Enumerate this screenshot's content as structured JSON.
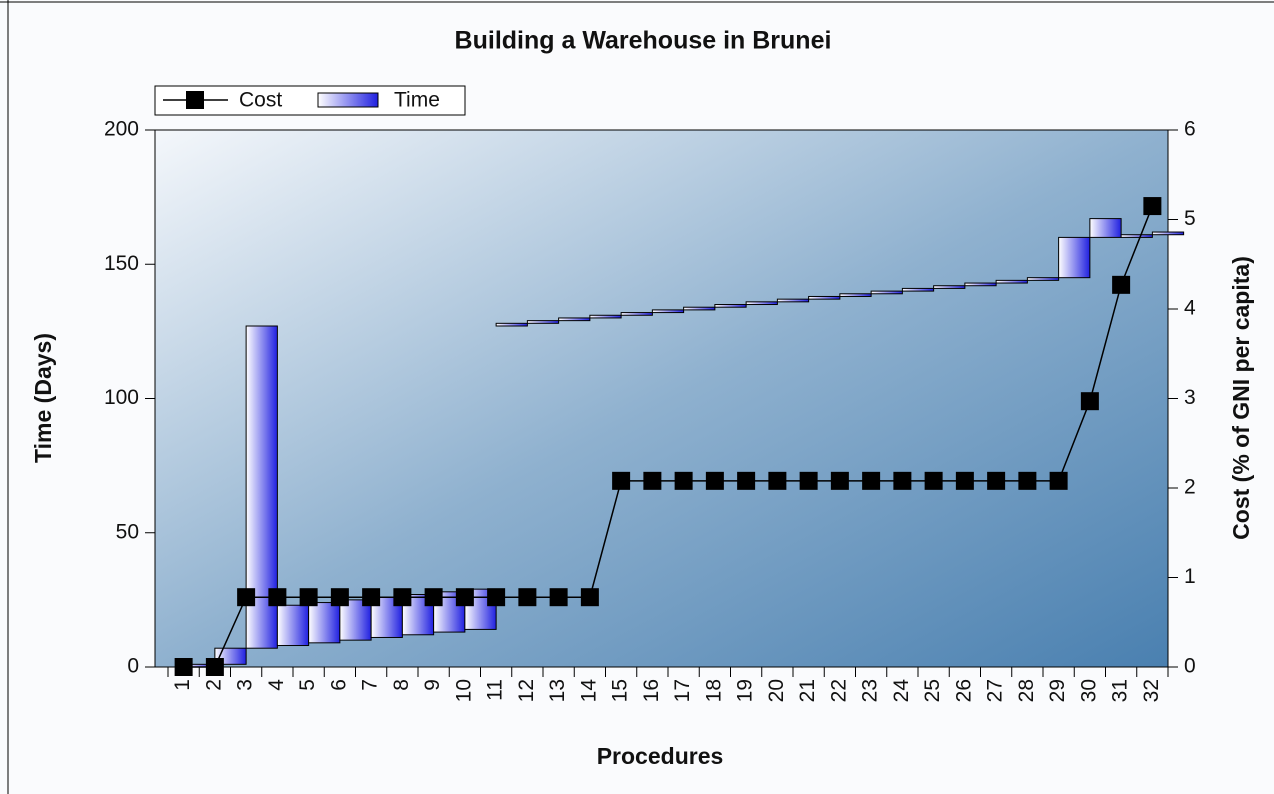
{
  "chart_data": {
    "type": "bar",
    "title": "Building a Warehouse in Brunei",
    "x_label": "Procedures",
    "y_label": "Time (Days)",
    "y2_label": "Cost (% of GNI per capita)",
    "categories": [
      "1",
      "2",
      "3",
      "4",
      "5",
      "6",
      "7",
      "8",
      "9",
      "10",
      "11",
      "12",
      "13",
      "14",
      "15",
      "16",
      "17",
      "18",
      "19",
      "20",
      "21",
      "22",
      "23",
      "24",
      "25",
      "26",
      "27",
      "28",
      "29",
      "30",
      "31",
      "32"
    ],
    "ylim": [
      0,
      200
    ],
    "yticks": [
      0,
      50,
      100,
      150,
      200
    ],
    "y2lim": [
      0,
      6
    ],
    "y2ticks": [
      0,
      1,
      2,
      3,
      4,
      5,
      6
    ],
    "legend": "top-left",
    "series": [
      {
        "name": "Cost",
        "type": "line",
        "axis": "y2",
        "color": "#000000",
        "values": [
          0,
          0,
          0.78,
          0.78,
          0.78,
          0.78,
          0.78,
          0.78,
          0.78,
          0.78,
          0.78,
          0.78,
          0.78,
          0.78,
          2.08,
          2.08,
          2.08,
          2.08,
          2.08,
          2.08,
          2.08,
          2.08,
          2.08,
          2.08,
          2.08,
          2.08,
          2.08,
          2.08,
          2.08,
          2.97,
          4.27,
          5.15
        ]
      },
      {
        "name": "Time",
        "type": "bar",
        "color": "#2020e0",
        "start": [
          0,
          1,
          7,
          8,
          9,
          10,
          11,
          12,
          13,
          14,
          127,
          128,
          129,
          130,
          131,
          132,
          133,
          134,
          135,
          136,
          137,
          138,
          139,
          140,
          141,
          142,
          143,
          144,
          145,
          160,
          160,
          161
        ],
        "values": [
          1,
          6,
          120,
          15,
          15,
          15,
          15,
          15,
          15,
          15,
          1,
          1,
          1,
          1,
          1,
          1,
          1,
          1,
          1,
          1,
          1,
          1,
          1,
          1,
          1,
          1,
          1,
          1,
          15,
          7,
          1,
          1
        ]
      }
    ]
  }
}
